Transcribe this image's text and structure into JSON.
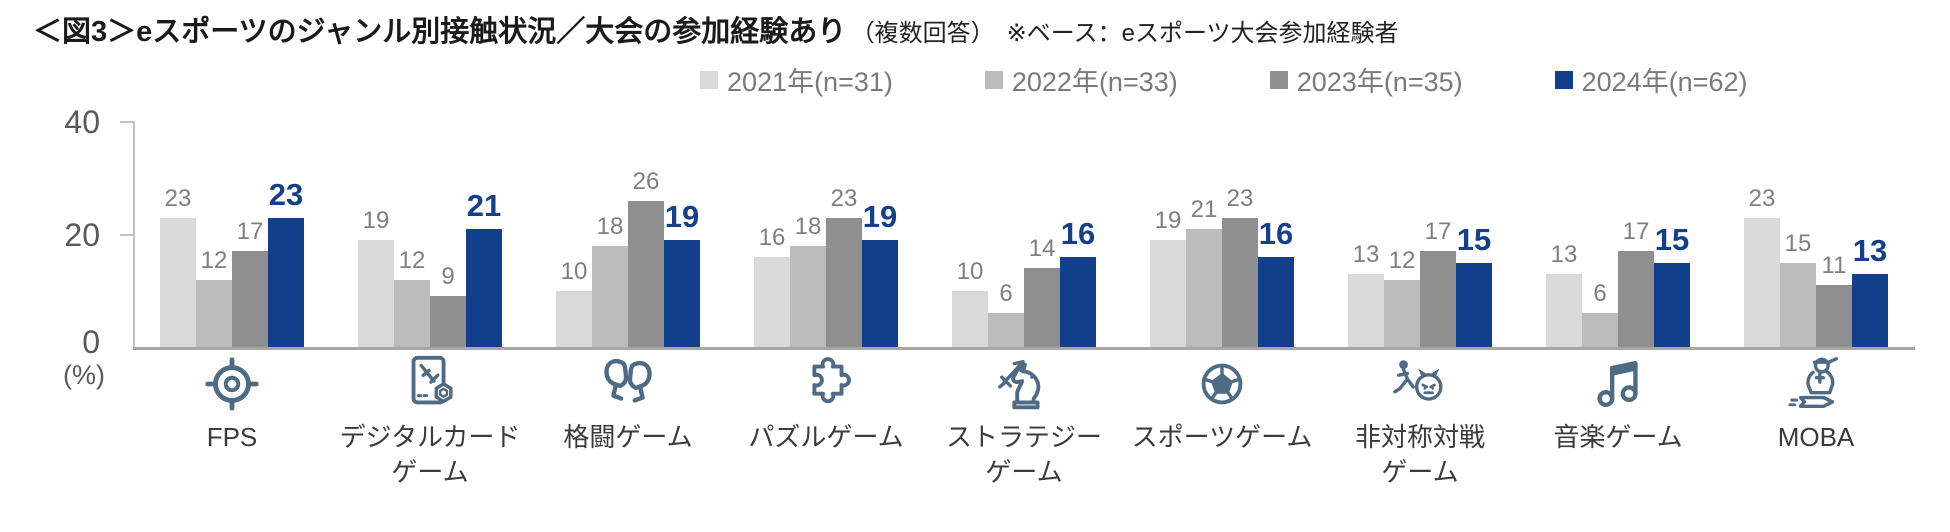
{
  "title": {
    "main": "＜図3＞eスポーツのジャンル別接触状況／大会の参加経験あり",
    "note": "（複数回答）　※ベース：eスポーツ大会参加経験者"
  },
  "legend": [
    {
      "label": "2021年(n=31)",
      "color": "#d9d9d9"
    },
    {
      "label": "2022年(n=33)",
      "color": "#bcbcbc"
    },
    {
      "label": "2023年(n=35)",
      "color": "#8f8f8f"
    },
    {
      "label": "2024年(n=62)",
      "color": "#123f8b"
    }
  ],
  "y_axis": {
    "tick_40": "40",
    "tick_20": "20",
    "tick_0": "0",
    "unit": "(%)"
  },
  "colors": {
    "accent_blue": "#123f8b",
    "icon_slate": "#4e6b85",
    "label_gray": "#7d7f83"
  },
  "chart_data": {
    "type": "bar",
    "title": "eスポーツのジャンル別接触状況／大会の参加経験あり（複数回答）",
    "base_note": "ベース：eスポーツ大会参加経験者",
    "categories": [
      "FPS",
      "デジタルカードゲーム",
      "格闘ゲーム",
      "パズルゲーム",
      "ストラテジーゲーム",
      "スポーツゲーム",
      "非対称対戦ゲーム",
      "音楽ゲーム",
      "MOBA"
    ],
    "category_lines": [
      [
        "FPS"
      ],
      [
        "デジタルカード",
        "ゲーム"
      ],
      [
        "格闘ゲーム"
      ],
      [
        "パズルゲーム"
      ],
      [
        "ストラテジー",
        "ゲーム"
      ],
      [
        "スポーツゲーム"
      ],
      [
        "非対称対戦",
        "ゲーム"
      ],
      [
        "音楽ゲーム"
      ],
      [
        "MOBA"
      ]
    ],
    "icons": [
      "crosshair-icon",
      "digital-card-icon",
      "boxing-gloves-icon",
      "puzzle-piece-icon",
      "chess-knight-sword-icon",
      "soccer-ball-icon",
      "oni-chase-icon",
      "music-note-icon",
      "soldier-rocket-icon"
    ],
    "series": [
      {
        "name": "2021年(n=31)",
        "color": "#d9d9d9",
        "values": [
          23,
          19,
          10,
          16,
          10,
          19,
          13,
          13,
          23
        ]
      },
      {
        "name": "2022年(n=33)",
        "color": "#bcbcbc",
        "values": [
          12,
          12,
          18,
          18,
          6,
          21,
          12,
          6,
          15
        ]
      },
      {
        "name": "2023年(n=35)",
        "color": "#8f8f8f",
        "values": [
          17,
          9,
          26,
          23,
          14,
          23,
          17,
          17,
          11
        ]
      },
      {
        "name": "2024年(n=62)",
        "color": "#123f8b",
        "values": [
          23,
          21,
          19,
          19,
          16,
          16,
          15,
          15,
          13
        ]
      }
    ],
    "ylim": [
      0,
      40
    ],
    "yticks": [
      0,
      20,
      40
    ],
    "unit": "(%)",
    "grid": false,
    "legend_position": "top",
    "value_labels": true,
    "highlight_series": "2024年(n=62)"
  }
}
